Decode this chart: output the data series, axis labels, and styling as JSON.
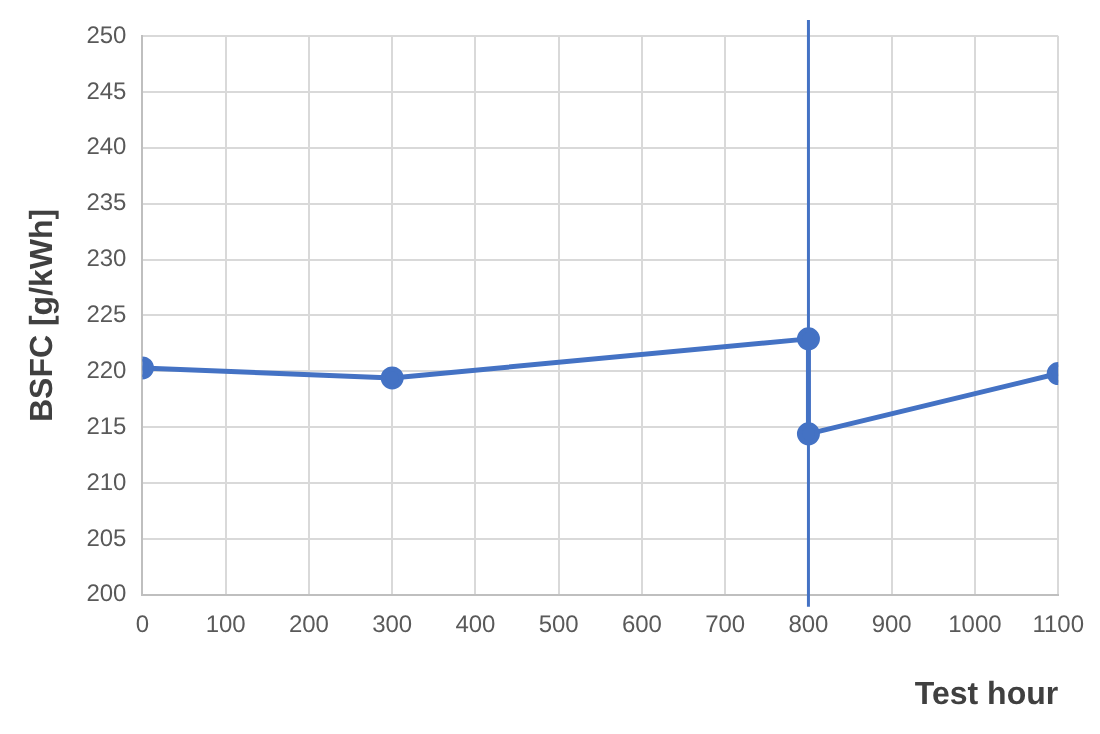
{
  "chart_data": {
    "type": "line",
    "xlabel": "Test hour",
    "ylabel": "BSFC [g/kWh]",
    "x": [
      0,
      300,
      800,
      800,
      1100
    ],
    "series": [
      {
        "color": "#4472c4",
        "values": [
          220.3,
          219.4,
          222.9,
          214.4,
          219.8
        ]
      }
    ],
    "xlim": [
      0,
      1100
    ],
    "xticks": [
      0,
      100,
      200,
      300,
      400,
      500,
      600,
      700,
      800,
      900,
      1000,
      1100
    ],
    "ylim": [
      200,
      250
    ],
    "yticks": [
      200,
      205,
      210,
      215,
      220,
      225,
      230,
      235,
      240,
      245,
      250
    ],
    "grid": true,
    "legend": false,
    "marker": "circle",
    "line_style": "solid",
    "ref_lines": [
      {
        "axis": "x",
        "value": 800,
        "color": "#4472c4"
      }
    ]
  }
}
